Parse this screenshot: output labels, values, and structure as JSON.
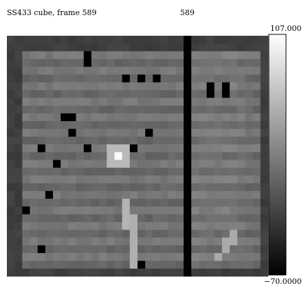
{
  "header": {
    "title": "SS433 cube, frame 589",
    "frame": "589"
  },
  "colorbar": {
    "max": "107.000",
    "min": "−70.0000"
  }
}
